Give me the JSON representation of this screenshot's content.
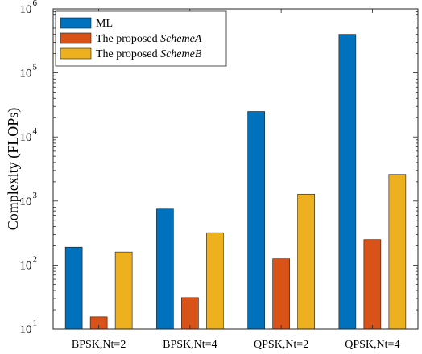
{
  "chart_data": {
    "type": "bar",
    "categories": [
      "BPSK,Nt=2",
      "BPSK,Nt=4",
      "QPSK,Nt=2",
      "QPSK,Nt=4"
    ],
    "series": [
      {
        "name": "ML",
        "color": "#0072BD",
        "values": [
          190,
          750,
          25000,
          400000
        ]
      },
      {
        "name": "The proposed SchemeA",
        "name_plain": "The proposed ",
        "name_italic": "SchemeA",
        "color": "#D95319",
        "values": [
          15.5,
          31,
          125,
          250
        ]
      },
      {
        "name": "The proposed SchemeB",
        "name_plain": "The proposed ",
        "name_italic": "SchemeB",
        "color": "#EDB120",
        "values": [
          160,
          320,
          1280,
          2600
        ]
      }
    ],
    "ylabel": "Complexity (FLOPs)",
    "yscale": "log",
    "ylim": [
      10,
      1000000
    ],
    "yticks": [
      {
        "base": "10",
        "exp": "1",
        "value": 10
      },
      {
        "base": "10",
        "exp": "2",
        "value": 100
      },
      {
        "base": "10",
        "exp": "3",
        "value": 1000
      },
      {
        "base": "10",
        "exp": "4",
        "value": 10000
      },
      {
        "base": "10",
        "exp": "5",
        "value": 100000
      },
      {
        "base": "10",
        "exp": "6",
        "value": 1000000
      }
    ],
    "legend_position": "top-left",
    "grid": false
  }
}
